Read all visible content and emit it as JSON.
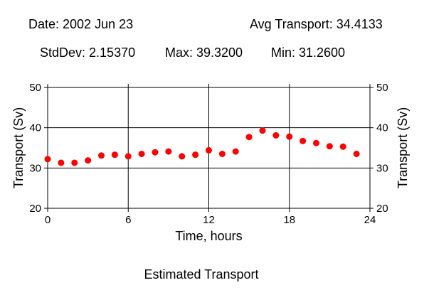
{
  "header": {
    "date": "Date: 2002 Jun 23",
    "avg": "Avg Transport: 34.4133",
    "stddev": "StdDev: 2.15370",
    "max": "Max: 39.3200",
    "min": "Min: 31.2600"
  },
  "chart_data": {
    "type": "scatter",
    "title": "Estimated Transport",
    "xlabel": "Time, hours",
    "ylabel": "Transport (Sv)",
    "ylabel_right": "Transport (Sv)",
    "xlim": [
      0,
      24
    ],
    "ylim": [
      20,
      50
    ],
    "x_ticks": [
      0,
      6,
      12,
      18,
      24
    ],
    "y_ticks": [
      20,
      30,
      40,
      50
    ],
    "grid": true,
    "point_color": "#ff0000",
    "x": [
      0,
      1,
      2,
      3,
      4,
      5,
      6,
      7,
      8,
      9,
      10,
      11,
      12,
      13,
      14,
      15,
      16,
      17,
      18,
      19,
      20,
      21,
      22,
      23
    ],
    "y": [
      32.2,
      31.3,
      31.3,
      31.9,
      33.1,
      33.3,
      32.9,
      33.5,
      33.9,
      34.1,
      32.9,
      33.3,
      34.4,
      33.5,
      34.1,
      37.7,
      39.3,
      38.1,
      37.8,
      36.7,
      36.2,
      35.4,
      35.3,
      33.5
    ]
  }
}
